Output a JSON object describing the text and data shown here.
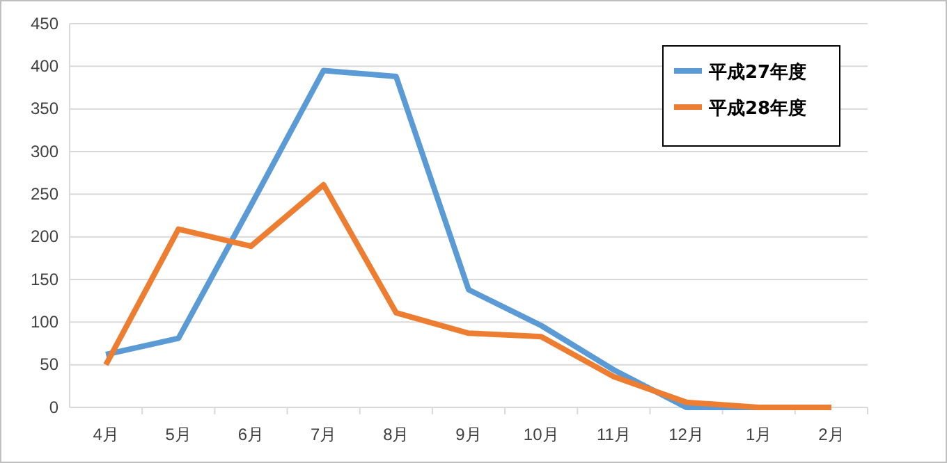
{
  "chart_data": {
    "type": "line",
    "categories": [
      "4月",
      "5月",
      "6月",
      "7月",
      "8月",
      "9月",
      "10月",
      "11月",
      "12月",
      "1月",
      "2月"
    ],
    "series": [
      {
        "name": "平成27年度",
        "color": "#5b9bd5",
        "values": [
          62,
          81,
          237,
          395,
          388,
          138,
          96,
          44,
          0,
          0,
          0
        ]
      },
      {
        "name": "平成28年度",
        "color": "#ed7d31",
        "values": [
          50,
          209,
          189,
          261,
          111,
          87,
          83,
          36,
          6,
          0,
          0
        ]
      }
    ],
    "ylim": [
      0,
      450
    ],
    "yticks": [
      0,
      50,
      100,
      150,
      200,
      250,
      300,
      350,
      400,
      450
    ],
    "grid": "y",
    "legend": "top right",
    "marker": "none",
    "line_style": "solid"
  }
}
